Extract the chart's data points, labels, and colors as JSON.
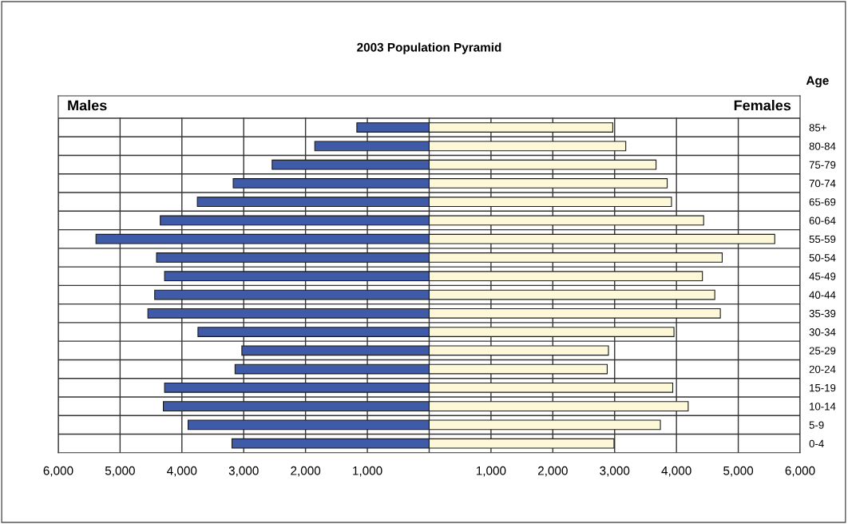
{
  "chart_data": {
    "type": "bar",
    "orientation": "horizontal",
    "title": "2003 Population Pyramid",
    "ylabel": "Age",
    "categories": [
      "85+",
      "80-84",
      "75-79",
      "70-74",
      "65-69",
      "60-64",
      "55-59",
      "50-54",
      "45-49",
      "40-44",
      "35-39",
      "30-34",
      "25-29",
      "20-24",
      "15-19",
      "10-14",
      "5-9",
      "0-4"
    ],
    "series": [
      {
        "color": "#3f5ba8",
        "values": [
          -1170,
          -1850,
          -2540,
          -3170,
          -3750,
          -4350,
          -5390,
          -4410,
          -4280,
          -4440,
          -4550,
          -3740,
          -3030,
          -3140,
          -4280,
          -4300,
          -3900,
          -3190
        ]
      },
      {
        "color": "#fdf8d8",
        "values": [
          2970,
          3180,
          3670,
          3850,
          3920,
          4440,
          5590,
          4740,
          4420,
          4620,
          4710,
          3960,
          2900,
          2880,
          3940,
          4190,
          3740,
          2990
        ]
      }
    ],
    "xlim": [
      -6000,
      6000
    ],
    "xticks": [
      {
        "value": -6000,
        "label": "6,000"
      },
      {
        "value": -5000,
        "label": "5,000"
      },
      {
        "value": -4000,
        "label": "4,000"
      },
      {
        "value": -3000,
        "label": "3,000"
      },
      {
        "value": -2000,
        "label": "2,000"
      },
      {
        "value": -1000,
        "label": "1,000"
      },
      {
        "value": 0,
        "label": null
      },
      {
        "value": 1000,
        "label": "1,000"
      },
      {
        "value": 2000,
        "label": "2,000"
      },
      {
        "value": 3000,
        "label": "3,000"
      },
      {
        "value": 4000,
        "label": "4,000"
      },
      {
        "value": 5000,
        "label": "5,000"
      },
      {
        "value": 6000,
        "label": "6,000"
      }
    ],
    "stacked": true,
    "annotations": [
      "Males",
      "Females"
    ],
    "grid": true,
    "legend": false
  }
}
